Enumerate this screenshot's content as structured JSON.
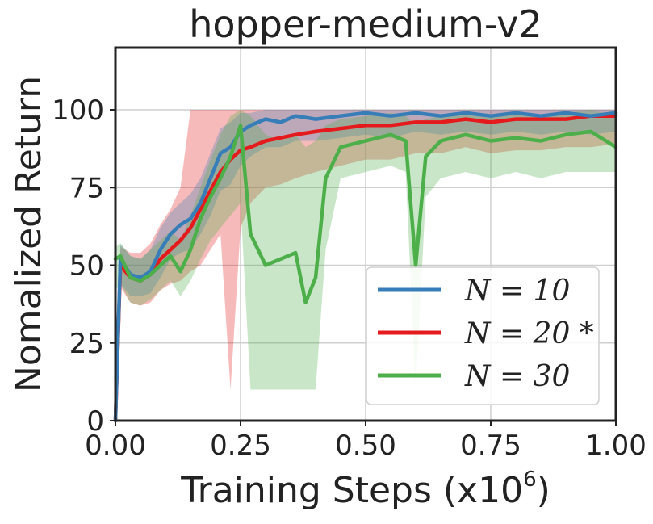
{
  "chart_data": {
    "type": "line",
    "title": "hopper-medium-v2",
    "xlabel": "Training Steps (x10",
    "xlabel_exp": "6",
    "xlabel_close": ")",
    "ylabel": "Nomalized Return",
    "xlim": [
      0,
      1.0
    ],
    "ylim": [
      0,
      120
    ],
    "grid": true,
    "legend_position": "lower-right",
    "x_ticks": [
      0.0,
      0.25,
      0.5,
      0.75,
      1.0
    ],
    "x_tick_labels": [
      "0.00",
      "0.25",
      "0.50",
      "0.75",
      "1.00"
    ],
    "y_ticks": [
      0,
      25,
      50,
      75,
      100
    ],
    "y_tick_labels": [
      "0",
      "25",
      "50",
      "75",
      "100"
    ],
    "series": [
      {
        "name": "N = 10",
        "legend_label": "N = 10",
        "color": "#377eb8",
        "x": [
          0.0,
          0.01,
          0.03,
          0.05,
          0.07,
          0.09,
          0.11,
          0.13,
          0.15,
          0.17,
          0.19,
          0.21,
          0.23,
          0.25,
          0.27,
          0.3,
          0.33,
          0.36,
          0.4,
          0.45,
          0.5,
          0.55,
          0.6,
          0.65,
          0.7,
          0.75,
          0.8,
          0.85,
          0.9,
          0.95,
          1.0
        ],
        "y": [
          0,
          52,
          47,
          46,
          48,
          55,
          60,
          63,
          65,
          70,
          78,
          86,
          88,
          93,
          95,
          97,
          96,
          98,
          97,
          98,
          99,
          98,
          99,
          98,
          99,
          98,
          99,
          98,
          99,
          98,
          99
        ],
        "lower": [
          0,
          44,
          40,
          40,
          41,
          46,
          52,
          54,
          55,
          60,
          66,
          74,
          76,
          82,
          85,
          88,
          88,
          90,
          90,
          91,
          92,
          91,
          93,
          92,
          93,
          92,
          93,
          92,
          93,
          92,
          93
        ],
        "upper": [
          0,
          57,
          53,
          52,
          55,
          62,
          67,
          70,
          73,
          78,
          86,
          94,
          96,
          99,
          99,
          100,
          100,
          100,
          100,
          100,
          100,
          100,
          100,
          100,
          100,
          100,
          100,
          100,
          100,
          100,
          100
        ]
      },
      {
        "name": "N = 20 *",
        "legend_label": "N = 20 *",
        "color": "#e41a1c",
        "x": [
          0.0,
          0.01,
          0.03,
          0.05,
          0.07,
          0.09,
          0.11,
          0.13,
          0.15,
          0.17,
          0.19,
          0.21,
          0.23,
          0.25,
          0.27,
          0.3,
          0.33,
          0.36,
          0.4,
          0.45,
          0.5,
          0.55,
          0.6,
          0.65,
          0.7,
          0.75,
          0.8,
          0.85,
          0.9,
          0.95,
          1.0
        ],
        "y": [
          0,
          50,
          46,
          45,
          47,
          52,
          55,
          58,
          62,
          68,
          74,
          80,
          84,
          87,
          88,
          90,
          91,
          92,
          93,
          94,
          95,
          95,
          96,
          96,
          97,
          96,
          97,
          97,
          97,
          98,
          98
        ],
        "lower": [
          0,
          43,
          38,
          37,
          38,
          42,
          44,
          45,
          48,
          50,
          55,
          60,
          10,
          62,
          70,
          75,
          76,
          78,
          80,
          82,
          84,
          84,
          86,
          86,
          88,
          86,
          87,
          87,
          88,
          88,
          89
        ],
        "upper": [
          0,
          56,
          54,
          54,
          57,
          63,
          68,
          75,
          100,
          100,
          100,
          100,
          100,
          100,
          100,
          100,
          100,
          100,
          100,
          100,
          100,
          100,
          100,
          100,
          100,
          100,
          100,
          100,
          100,
          100,
          100
        ]
      },
      {
        "name": "N = 30",
        "legend_label": "N = 30",
        "color": "#4daf4a",
        "x": [
          0.0,
          0.01,
          0.03,
          0.05,
          0.07,
          0.09,
          0.11,
          0.13,
          0.15,
          0.17,
          0.19,
          0.21,
          0.23,
          0.25,
          0.27,
          0.3,
          0.33,
          0.36,
          0.38,
          0.4,
          0.42,
          0.45,
          0.5,
          0.55,
          0.58,
          0.6,
          0.62,
          0.65,
          0.7,
          0.75,
          0.8,
          0.85,
          0.9,
          0.95,
          1.0
        ],
        "y": [
          52,
          53,
          46,
          45,
          47,
          50,
          53,
          48,
          55,
          65,
          72,
          78,
          85,
          95,
          60,
          50,
          52,
          54,
          38,
          46,
          78,
          88,
          90,
          92,
          90,
          50,
          85,
          90,
          92,
          90,
          91,
          90,
          92,
          93,
          88
        ],
        "lower": [
          42,
          44,
          38,
          37,
          39,
          42,
          45,
          40,
          45,
          52,
          58,
          62,
          66,
          70,
          10,
          10,
          10,
          10,
          10,
          10,
          55,
          78,
          80,
          82,
          80,
          10,
          72,
          78,
          80,
          78,
          80,
          78,
          80,
          80,
          80
        ],
        "upper": [
          56,
          57,
          53,
          52,
          55,
          58,
          61,
          58,
          66,
          75,
          84,
          92,
          98,
          100,
          98,
          92,
          90,
          92,
          88,
          90,
          95,
          97,
          98,
          99,
          98,
          95,
          97,
          98,
          99,
          98,
          99,
          98,
          99,
          100,
          98
        ]
      }
    ]
  }
}
